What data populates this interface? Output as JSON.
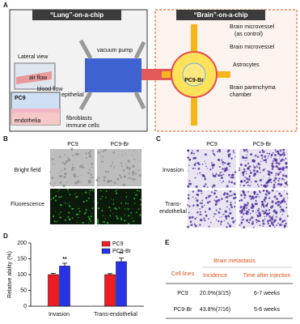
{
  "panel_labels": [
    "A",
    "B",
    "C",
    "D",
    "E"
  ],
  "lung_chip": {
    "title": "“Lung”-on-a-chip",
    "labels": [
      "Lateral view",
      "air flow",
      "blood flow",
      "vacuum pump",
      "PC9",
      "epithelial",
      "endothelia",
      "fibroblasts",
      "immune cells"
    ]
  },
  "brain_chip": {
    "title": "“Brain”-on-a-chip",
    "labels": [
      "Brain microvessel",
      "(as control)",
      "Brain microvessel",
      "Astrocytes",
      "PC9-Br",
      "Brain parenchyma",
      "chamber"
    ]
  },
  "panel_b": {
    "columns": [
      "PC9",
      "PC9-Br"
    ],
    "rows": [
      "Bright field",
      "Fluorescence"
    ]
  },
  "panel_c": {
    "columns": [
      "PC9",
      "PC9-Br"
    ],
    "rows": [
      [
        "Invasion"
      ],
      [
        "Trans-",
        "endothelial"
      ]
    ]
  },
  "chart_data": {
    "type": "bar",
    "ylabel": "Relative ability (%)",
    "categories": [
      "Invasion",
      "Trans-endothelial"
    ],
    "series": [
      {
        "name": "PC9",
        "color": "#ee1c25",
        "values": [
          100,
          100
        ],
        "errors": [
          4,
          3
        ]
      },
      {
        "name": "PC9-Br",
        "color": "#2a32e8",
        "values": [
          127,
          141
        ],
        "errors": [
          9,
          11
        ]
      }
    ],
    "annotations": [
      "**",
      "**"
    ],
    "ylim": [
      0,
      200
    ],
    "yticks": [
      0,
      50,
      100,
      150,
      200
    ],
    "legend": "upper right"
  },
  "table": {
    "title": "Brain metastasis",
    "header": [
      "Cell lines",
      "Incidence",
      "Time after injection"
    ],
    "rows": [
      [
        "PC9",
        "20.0%(3/15)",
        "6-7 weeks"
      ],
      [
        "PC9-Br",
        "43.8%(7/16)",
        "5-6 weeks"
      ]
    ]
  }
}
